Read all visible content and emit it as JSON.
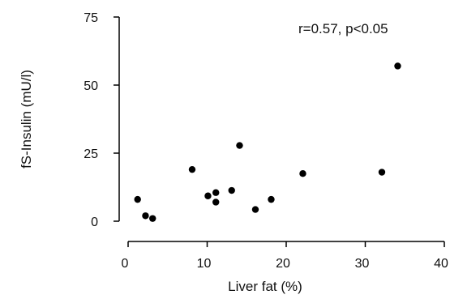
{
  "chart_data": {
    "type": "scatter",
    "xlabel": "Liver fat (%)",
    "ylabel": "fS-Insulin (mU/l)",
    "annotation": "r=0.57, p<0.05",
    "xlim": [
      0,
      40
    ],
    "ylim": [
      0,
      75
    ],
    "x_ticks": [
      0,
      10,
      20,
      30,
      40
    ],
    "y_ticks": [
      0,
      25,
      50,
      75
    ],
    "grid": false,
    "marker_color": "#000000",
    "points": [
      {
        "x": 1.2,
        "y": 8
      },
      {
        "x": 2.2,
        "y": 2
      },
      {
        "x": 3.1,
        "y": 1
      },
      {
        "x": 8.1,
        "y": 19
      },
      {
        "x": 10.1,
        "y": 9.3
      },
      {
        "x": 11.1,
        "y": 10.5
      },
      {
        "x": 11.1,
        "y": 7
      },
      {
        "x": 13.1,
        "y": 11.3
      },
      {
        "x": 14.1,
        "y": 27.8
      },
      {
        "x": 16.1,
        "y": 4.3
      },
      {
        "x": 18.1,
        "y": 8
      },
      {
        "x": 22.1,
        "y": 17.5
      },
      {
        "x": 32.1,
        "y": 18
      },
      {
        "x": 34.1,
        "y": 57
      }
    ]
  }
}
